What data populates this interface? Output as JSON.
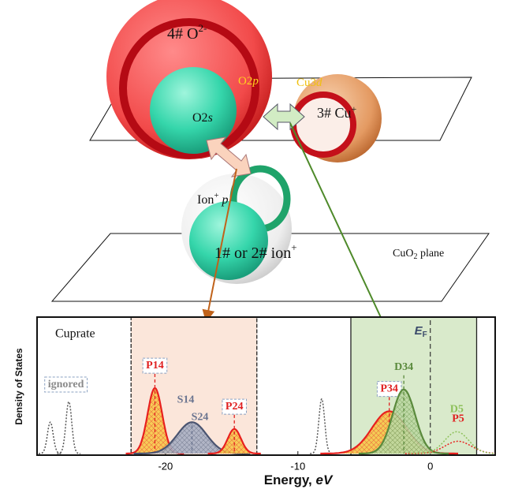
{
  "diagram": {
    "o_ion": {
      "text": "4# O",
      "sup": "2-"
    },
    "o2p": {
      "text": "O2",
      "italic": "p"
    },
    "cu3d": {
      "text": "Cu3",
      "italic": "d"
    },
    "cu_ion": {
      "text": "3# Cu",
      "sup": "+"
    },
    "o2s": {
      "text": "O2",
      "italic": "s"
    },
    "ion_p": {
      "text": "Ion",
      "sup": "+",
      "italic": "p"
    },
    "ion": {
      "text": "1# or 2# ion",
      "sup": "+"
    },
    "plane": {
      "text": "CuO",
      "sub": "2",
      "rest": " plane"
    }
  },
  "chart_data": {
    "type": "density",
    "annotation": "Cuprate",
    "y_label": "Density of States",
    "x_label": {
      "text": "Energy, ",
      "unit": "eV"
    },
    "fermi": {
      "text": "E",
      "sub": "F",
      "x": 0
    },
    "xlim": [
      -29.7,
      4.9
    ],
    "xticks": [
      -20,
      -10,
      0
    ],
    "ylim": [
      0,
      1
    ],
    "regions": [
      {
        "xlim": [
          -22.6,
          -13.1
        ],
        "color": "#fbe6da"
      },
      {
        "xlim": [
          -6,
          3.5
        ],
        "color": "#d9eacb"
      }
    ],
    "peaks": [
      {
        "labels": [
          "ignored"
        ],
        "label_color": "#8a8a8a",
        "boxed": true,
        "color": "#555555",
        "dotted": true,
        "centers": [
          -28.7,
          -27.3,
          -8.2
        ],
        "heights": [
          0.23,
          0.38,
          0.4
        ],
        "width": 0.22
      },
      {
        "labels": [
          "P14"
        ],
        "label_color": "#e02020",
        "boxed": true,
        "color": "#e8201e",
        "fill": "#f7c948",
        "centers": [
          -20.8
        ],
        "heights": [
          0.48
        ],
        "width": 0.55
      },
      {
        "labels": [
          "S14",
          "S24"
        ],
        "label_color": "#6b7590",
        "boxed": false,
        "color": "#4a5470",
        "fill": "#a9b0c4",
        "centers": [
          -18
        ],
        "heights": [
          0.23
        ],
        "width": 1.1
      },
      {
        "labels": [
          "P24"
        ],
        "label_color": "#e02020",
        "boxed": true,
        "color": "#e8201e",
        "fill": "#f7c948",
        "centers": [
          -14.8
        ],
        "heights": [
          0.18
        ],
        "width": 0.5
      },
      {
        "labels": [
          "P34"
        ],
        "label_color": "#e02020",
        "boxed": true,
        "color": "#e8201e",
        "fill": "#f7c948",
        "centers": [
          -3.1
        ],
        "heights": [
          0.31
        ],
        "width": 1.3
      },
      {
        "labels": [
          "D34"
        ],
        "label_color": "#5a8a3c",
        "boxed": false,
        "color": "#5a8a3c",
        "fill": "#bcd8a3",
        "centers": [
          -2
        ],
        "heights": [
          0.47
        ],
        "width": 0.85
      },
      {
        "labels": [
          "P5"
        ],
        "label_color": "#e02020",
        "boxed": false,
        "color": "#e8201e",
        "dotted": true,
        "centers": [
          2.1
        ],
        "heights": [
          0.09
        ],
        "width": 1.0
      },
      {
        "labels": [
          "D5"
        ],
        "label_color": "#8dc05a",
        "boxed": false,
        "color": "#8dc05a",
        "dotted": true,
        "centers": [
          2
        ],
        "heights": [
          0.16
        ],
        "width": 0.9
      }
    ]
  }
}
